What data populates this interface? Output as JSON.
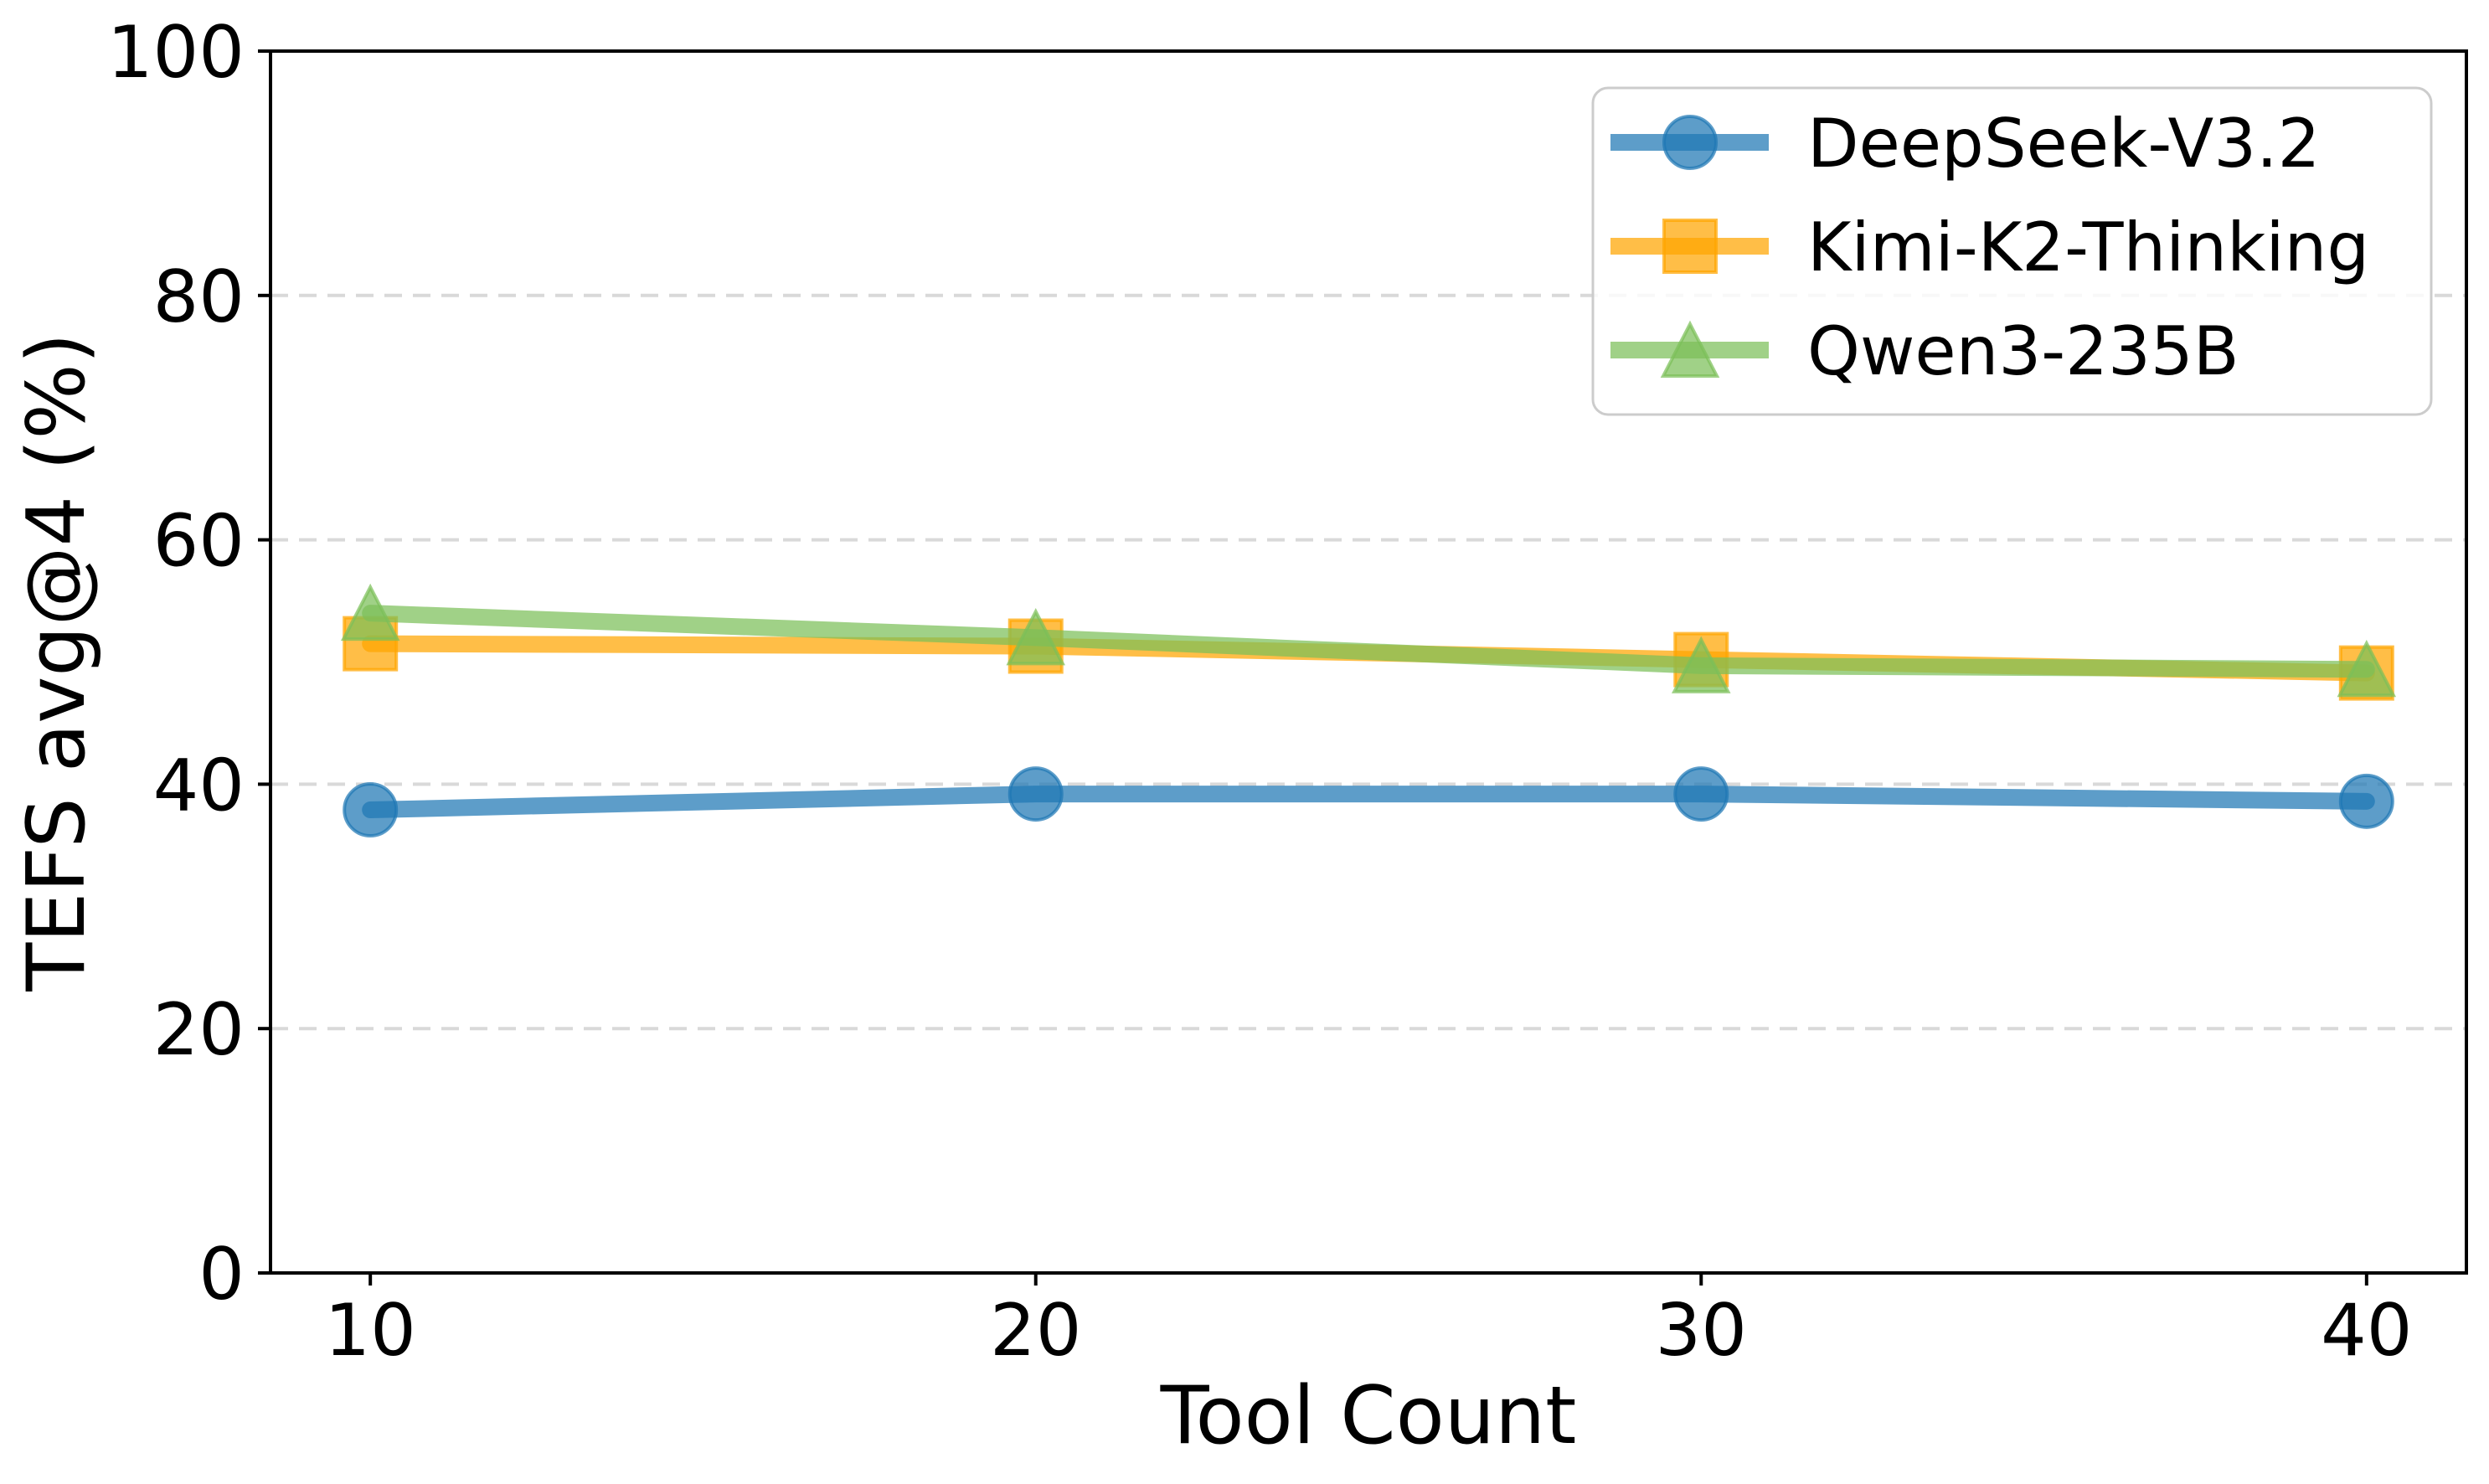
{
  "figure": {
    "background": "#ffffff",
    "axis_color": "#000000",
    "grid_color": "#d9d9d9",
    "legend_border_color": "#cccccc",
    "legend_background": "#ffffff",
    "legend_background_opacity": 0.8
  },
  "chart_data": {
    "type": "line",
    "title": "",
    "xlabel": "Tool Count",
    "ylabel": "TEFS avg@4 (%)",
    "x": [
      10,
      20,
      30,
      40
    ],
    "xtick_labels": [
      "10",
      "20",
      "30",
      "40"
    ],
    "ytick_values": [
      0,
      20,
      40,
      60,
      80,
      100
    ],
    "ytick_labels": [
      "0",
      "20",
      "40",
      "60",
      "80",
      "100"
    ],
    "xlim": [
      8.5,
      41.5
    ],
    "ylim": [
      0,
      100
    ],
    "grid": "horizontal dashed gridlines at 20, 40, 60, 80",
    "legend_position": "upper right",
    "series": [
      {
        "name": "DeepSeek-V3.2",
        "marker": "circle",
        "color": "#1f77b4",
        "opacity": 0.72,
        "values": [
          37.9,
          39.2,
          39.2,
          38.6
        ]
      },
      {
        "name": "Kimi-K2-Thinking",
        "marker": "square",
        "color": "#ffa500",
        "opacity": 0.72,
        "values": [
          51.5,
          51.3,
          50.2,
          49.1
        ]
      },
      {
        "name": "Qwen3-235B",
        "marker": "triangle",
        "color": "#7cbf59",
        "opacity": 0.72,
        "values": [
          54.0,
          52.0,
          49.7,
          49.4
        ]
      }
    ]
  }
}
